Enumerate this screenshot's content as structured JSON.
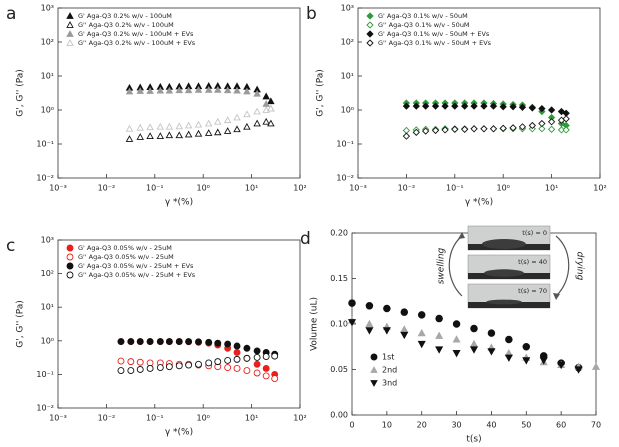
{
  "chart_data": [
    {
      "type": "scatter",
      "panel": "a",
      "xlabel": "γ *(%)",
      "ylabel": "G', G'' (Pa)",
      "xscale": "log",
      "yscale": "log",
      "xlim": [
        0.001,
        100
      ],
      "ylim": [
        0.01,
        1000
      ],
      "xticks": [
        {
          "value": 0.001,
          "label": "10⁻³"
        },
        {
          "value": 0.01,
          "label": "10⁻²"
        },
        {
          "value": 0.1,
          "label": "10⁻¹"
        },
        {
          "value": 1,
          "label": "10⁰"
        },
        {
          "value": 10,
          "label": "10¹"
        },
        {
          "value": 100,
          "label": "10²"
        }
      ],
      "yticks": [
        {
          "value": 0.01,
          "label": "10⁻²"
        },
        {
          "value": 0.1,
          "label": "10⁻¹"
        },
        {
          "value": 1,
          "label": "10⁰"
        },
        {
          "value": 10,
          "label": "10¹"
        },
        {
          "value": 100,
          "label": "10²"
        },
        {
          "value": 1000,
          "label": "10³"
        }
      ],
      "legend": "upper left",
      "x": [
        0.03,
        0.05,
        0.08,
        0.13,
        0.2,
        0.32,
        0.5,
        0.8,
        1.3,
        2,
        3.2,
        5,
        8,
        13,
        20,
        25
      ],
      "series": [
        {
          "name": "G' Aga-Q3 0.2% w/v - 100uM",
          "color": "#111111",
          "marker": "triangle-up",
          "filled": true,
          "values": [
            4.5,
            4.6,
            4.7,
            4.8,
            4.8,
            4.9,
            5,
            5,
            5.1,
            5.1,
            5,
            5,
            4.8,
            4,
            2.5,
            1.8
          ]
        },
        {
          "name": "G'' Aga-Q3 0.2% w/v - 100uM",
          "color": "#111111",
          "marker": "triangle-up",
          "filled": false,
          "values": [
            0.14,
            0.16,
            0.17,
            0.17,
            0.18,
            0.18,
            0.19,
            0.2,
            0.21,
            0.22,
            0.24,
            0.27,
            0.32,
            0.4,
            0.45,
            0.4
          ]
        },
        {
          "name": "G' Aga-Q3 0.2% w/v - 100uM + EVs",
          "color": "#9a9a9a",
          "marker": "triangle-up",
          "filled": true,
          "values": [
            3.5,
            3.6,
            3.6,
            3.7,
            3.7,
            3.8,
            3.8,
            3.9,
            3.9,
            3.9,
            3.8,
            3.7,
            3.5,
            3,
            1.5,
            1.1
          ]
        },
        {
          "name": "G'' Aga-Q3 0.2% w/v - 100uM + EVs",
          "color": "#c4c4c4",
          "marker": "triangle-up",
          "filled": false,
          "values": [
            0.28,
            0.3,
            0.31,
            0.32,
            0.32,
            0.33,
            0.35,
            0.37,
            0.4,
            0.45,
            0.5,
            0.6,
            0.75,
            0.9,
            1,
            1.1
          ]
        }
      ]
    },
    {
      "type": "scatter",
      "panel": "b",
      "xlabel": "γ *(%)",
      "ylabel": "G', G'' (Pa)",
      "xscale": "log",
      "yscale": "log",
      "xlim": [
        0.001,
        100
      ],
      "ylim": [
        0.01,
        1000
      ],
      "xticks": [
        {
          "value": 0.001,
          "label": "10⁻³"
        },
        {
          "value": 0.01,
          "label": "10⁻²"
        },
        {
          "value": 0.1,
          "label": "10⁻¹"
        },
        {
          "value": 1,
          "label": "10⁰"
        },
        {
          "value": 10,
          "label": "10¹"
        },
        {
          "value": 100,
          "label": "10²"
        }
      ],
      "yticks": [
        {
          "value": 0.01,
          "label": "10⁻²"
        },
        {
          "value": 0.1,
          "label": "10⁻¹"
        },
        {
          "value": 1,
          "label": "10⁰"
        },
        {
          "value": 10,
          "label": "10¹"
        },
        {
          "value": 100,
          "label": "10²"
        },
        {
          "value": 1000,
          "label": "10³"
        }
      ],
      "legend": "upper left",
      "x": [
        0.01,
        0.016,
        0.025,
        0.04,
        0.063,
        0.1,
        0.16,
        0.25,
        0.4,
        0.63,
        1,
        1.6,
        2.5,
        4,
        6.3,
        10,
        16,
        20
      ],
      "series": [
        {
          "name": "G' Aga-Q3 0.1% w/v - 50uM",
          "color": "#2e9b3a",
          "marker": "diamond",
          "filled": true,
          "values": [
            1.6,
            1.6,
            1.6,
            1.6,
            1.6,
            1.6,
            1.6,
            1.6,
            1.6,
            1.55,
            1.5,
            1.45,
            1.4,
            1.2,
            0.9,
            0.6,
            0.4,
            0.35
          ]
        },
        {
          "name": "G'' Aga-Q3 0.1% w/v - 50uM",
          "color": "#2e9b3a",
          "marker": "diamond",
          "filled": false,
          "values": [
            0.25,
            0.26,
            0.27,
            0.27,
            0.28,
            0.28,
            0.28,
            0.28,
            0.28,
            0.28,
            0.28,
            0.28,
            0.28,
            0.28,
            0.28,
            0.27,
            0.26,
            0.26
          ]
        },
        {
          "name": "G' Aga-Q3 0.1% w/v - 50uM + EVs",
          "color": "#111111",
          "marker": "diamond",
          "filled": true,
          "values": [
            1.3,
            1.3,
            1.3,
            1.3,
            1.3,
            1.3,
            1.3,
            1.3,
            1.3,
            1.3,
            1.25,
            1.25,
            1.2,
            1.15,
            1.1,
            1,
            0.9,
            0.8
          ]
        },
        {
          "name": "G'' Aga-Q3 0.1% w/v - 50uM + EVs",
          "color": "#111111",
          "marker": "diamond",
          "filled": false,
          "values": [
            0.17,
            0.22,
            0.24,
            0.25,
            0.26,
            0.27,
            0.27,
            0.28,
            0.28,
            0.28,
            0.29,
            0.3,
            0.32,
            0.35,
            0.4,
            0.45,
            0.5,
            0.55
          ]
        }
      ]
    },
    {
      "type": "scatter",
      "panel": "c",
      "xlabel": "γ *(%)",
      "ylabel": "G', G'' (Pa)",
      "xscale": "log",
      "yscale": "log",
      "xlim": [
        0.001,
        100
      ],
      "ylim": [
        0.01,
        1000
      ],
      "xticks": [
        {
          "value": 0.001,
          "label": "10⁻³"
        },
        {
          "value": 0.01,
          "label": "10⁻²"
        },
        {
          "value": 0.1,
          "label": "10⁻¹"
        },
        {
          "value": 1,
          "label": "10⁰"
        },
        {
          "value": 10,
          "label": "10¹"
        },
        {
          "value": 100,
          "label": "10²"
        }
      ],
      "yticks": [
        {
          "value": 0.01,
          "label": "10⁻²"
        },
        {
          "value": 0.1,
          "label": "10⁻¹"
        },
        {
          "value": 1,
          "label": "10⁰"
        },
        {
          "value": 10,
          "label": "10¹"
        },
        {
          "value": 100,
          "label": "10²"
        },
        {
          "value": 1000,
          "label": "10³"
        }
      ],
      "legend": "upper left",
      "x": [
        0.02,
        0.032,
        0.05,
        0.08,
        0.13,
        0.2,
        0.32,
        0.5,
        0.8,
        1.3,
        2,
        3.2,
        5,
        8,
        13,
        20,
        30
      ],
      "series": [
        {
          "name": "G' Aga-Q3 0.05% w/v - 25uM",
          "color": "#e8211d",
          "marker": "circle",
          "filled": true,
          "values": [
            0.95,
            0.95,
            0.95,
            0.95,
            0.95,
            0.95,
            0.95,
            0.93,
            0.9,
            0.85,
            0.75,
            0.6,
            0.45,
            0.3,
            0.2,
            0.15,
            0.1
          ]
        },
        {
          "name": "G'' Aga-Q3 0.05% w/v - 25uM",
          "color": "#e8211d",
          "marker": "circle",
          "filled": false,
          "values": [
            0.25,
            0.24,
            0.23,
            0.22,
            0.22,
            0.21,
            0.2,
            0.2,
            0.19,
            0.18,
            0.17,
            0.16,
            0.15,
            0.13,
            0.11,
            0.09,
            0.075
          ]
        },
        {
          "name": "G' Aga-Q3 0.05% w/v - 25uM + EVs",
          "color": "#111111",
          "marker": "circle",
          "filled": true,
          "values": [
            0.95,
            0.95,
            0.95,
            0.95,
            0.95,
            0.95,
            0.95,
            0.95,
            0.93,
            0.9,
            0.85,
            0.8,
            0.7,
            0.6,
            0.5,
            0.45,
            0.4
          ]
        },
        {
          "name": "G'' Aga-Q3 0.05% w/v - 25uM + EVs",
          "color": "#111111",
          "marker": "circle",
          "filled": false,
          "values": [
            0.13,
            0.13,
            0.14,
            0.15,
            0.16,
            0.17,
            0.18,
            0.19,
            0.2,
            0.22,
            0.24,
            0.26,
            0.28,
            0.3,
            0.32,
            0.34,
            0.35
          ]
        }
      ]
    },
    {
      "type": "scatter",
      "panel": "d",
      "xlabel": "t(s)",
      "ylabel": "Volume (uL)",
      "xscale": "linear",
      "yscale": "linear",
      "xlim": [
        0,
        70
      ],
      "ylim": [
        0,
        0.2
      ],
      "xticks": [
        0,
        10,
        20,
        30,
        40,
        50,
        60,
        70
      ],
      "yticks": [
        {
          "value": 0,
          "label": "0.00"
        },
        0.05,
        {
          "value": 0.1,
          "label": "0.10"
        },
        0.15,
        {
          "value": 0.2,
          "label": "0.20"
        }
      ],
      "legend": "lower left",
      "annotations": [
        "t(s) = 0",
        "t(s) = 40",
        "t(s) = 70",
        "swelling",
        "drying"
      ],
      "series": [
        {
          "name": "1st",
          "color": "#111111",
          "marker": "circle",
          "filled": true,
          "x": [
            0,
            5,
            10,
            15,
            20,
            25,
            30,
            35,
            40,
            45,
            50,
            55,
            60,
            65
          ],
          "values": [
            0.123,
            0.12,
            0.117,
            0.113,
            0.11,
            0.106,
            0.1,
            0.095,
            0.09,
            0.083,
            0.075,
            0.065,
            0.057,
            0.052
          ]
        },
        {
          "name": "2nd",
          "color": "#a8a8a8",
          "marker": "triangle-up",
          "filled": true,
          "x": [
            0,
            5,
            10,
            15,
            20,
            25,
            30,
            35,
            40,
            45,
            50,
            55,
            60,
            65,
            70
          ],
          "values": [
            0.104,
            0.1,
            0.097,
            0.094,
            0.09,
            0.087,
            0.083,
            0.078,
            0.074,
            0.068,
            0.063,
            0.058,
            0.055,
            0.053,
            0.053
          ]
        },
        {
          "name": "3nd",
          "color": "#111111",
          "marker": "triangle-down",
          "filled": true,
          "x": [
            0,
            5,
            10,
            15,
            20,
            25,
            30,
            35,
            40,
            45,
            50,
            55,
            60,
            65
          ],
          "values": [
            0.102,
            0.093,
            0.093,
            0.088,
            0.078,
            0.072,
            0.068,
            0.072,
            0.07,
            0.063,
            0.06,
            0.06,
            0.055,
            0.05
          ]
        }
      ]
    }
  ]
}
